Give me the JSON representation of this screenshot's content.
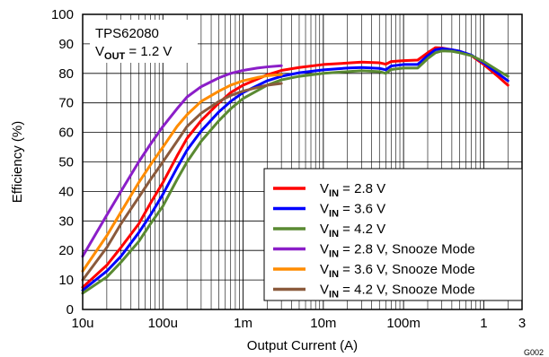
{
  "chart_data": {
    "type": "line",
    "xlabel": "Output Current (A)",
    "ylabel": "Efficiency (%)",
    "x_scale": "log",
    "xlim": [
      1e-05,
      3
    ],
    "ylim": [
      0,
      100
    ],
    "grid": true,
    "legend_position": "bottom-right",
    "x_ticks": [
      {
        "value": 1e-05,
        "label": "10u"
      },
      {
        "value": 0.0001,
        "label": "100u"
      },
      {
        "value": 0.001,
        "label": "1m"
      },
      {
        "value": 0.01,
        "label": "10m"
      },
      {
        "value": 0.1,
        "label": "100m"
      },
      {
        "value": 1,
        "label": "1"
      },
      {
        "value": 3,
        "label": "3"
      }
    ],
    "y_ticks": [
      {
        "value": 0,
        "label": "0"
      },
      {
        "value": 10,
        "label": "10"
      },
      {
        "value": 20,
        "label": "20"
      },
      {
        "value": 30,
        "label": "30"
      },
      {
        "value": 40,
        "label": "40"
      },
      {
        "value": 50,
        "label": "50"
      },
      {
        "value": 60,
        "label": "60"
      },
      {
        "value": 70,
        "label": "70"
      },
      {
        "value": 80,
        "label": "80"
      },
      {
        "value": 90,
        "label": "90"
      },
      {
        "value": 100,
        "label": "100"
      }
    ],
    "annotation": {
      "line1": "TPS62080",
      "line2_main": "V",
      "line2_sub": "OUT",
      "line2_rest": " = 1.2 V"
    },
    "footnote": "G002",
    "series": [
      {
        "name_main": "V",
        "name_sub": "IN",
        "name_rest": " = 2.8 V",
        "color": "#ff0000",
        "points": [
          [
            1e-05,
            7.5
          ],
          [
            2e-05,
            15
          ],
          [
            3e-05,
            21
          ],
          [
            5e-05,
            29
          ],
          [
            7e-05,
            36
          ],
          [
            0.0001,
            43
          ],
          [
            0.00015,
            52
          ],
          [
            0.0002,
            58
          ],
          [
            0.0003,
            64
          ],
          [
            0.0005,
            70
          ],
          [
            0.0007,
            73.5
          ],
          [
            0.001,
            76
          ],
          [
            0.002,
            79.5
          ],
          [
            0.003,
            81
          ],
          [
            0.005,
            82
          ],
          [
            0.01,
            83
          ],
          [
            0.02,
            83.5
          ],
          [
            0.03,
            83.8
          ],
          [
            0.05,
            83.6
          ],
          [
            0.06,
            83.1
          ],
          [
            0.07,
            84
          ],
          [
            0.1,
            84.3
          ],
          [
            0.15,
            84.5
          ],
          [
            0.2,
            87
          ],
          [
            0.25,
            88.7
          ],
          [
            0.3,
            88.6
          ],
          [
            0.4,
            88
          ],
          [
            0.5,
            87.5
          ],
          [
            0.7,
            86
          ],
          [
            1,
            83
          ],
          [
            1.5,
            79
          ],
          [
            2,
            76
          ]
        ]
      },
      {
        "name_main": "V",
        "name_sub": "IN",
        "name_rest": " = 3.6 V",
        "color": "#0000ff",
        "points": [
          [
            1e-05,
            6.5
          ],
          [
            2e-05,
            13
          ],
          [
            3e-05,
            18
          ],
          [
            5e-05,
            26
          ],
          [
            7e-05,
            32
          ],
          [
            0.0001,
            39
          ],
          [
            0.00015,
            48
          ],
          [
            0.0002,
            54
          ],
          [
            0.0003,
            60.5
          ],
          [
            0.0005,
            67
          ],
          [
            0.0007,
            70.5
          ],
          [
            0.001,
            73.5
          ],
          [
            0.002,
            77.5
          ],
          [
            0.003,
            79
          ],
          [
            0.005,
            80.2
          ],
          [
            0.01,
            81.2
          ],
          [
            0.02,
            81.8
          ],
          [
            0.03,
            82
          ],
          [
            0.05,
            81.7
          ],
          [
            0.06,
            81.2
          ],
          [
            0.07,
            82.5
          ],
          [
            0.1,
            83
          ],
          [
            0.15,
            83
          ],
          [
            0.2,
            86
          ],
          [
            0.25,
            88
          ],
          [
            0.3,
            88.4
          ],
          [
            0.4,
            88
          ],
          [
            0.5,
            87.5
          ],
          [
            0.7,
            86.2
          ],
          [
            1,
            83.5
          ],
          [
            1.5,
            80
          ],
          [
            2,
            77.5
          ]
        ]
      },
      {
        "name_main": "V",
        "name_sub": "IN",
        "name_rest": " = 4.2 V",
        "color": "#5a8a32",
        "points": [
          [
            1e-05,
            5.5
          ],
          [
            2e-05,
            11
          ],
          [
            3e-05,
            16
          ],
          [
            5e-05,
            23
          ],
          [
            7e-05,
            29
          ],
          [
            0.0001,
            35
          ],
          [
            0.00015,
            44
          ],
          [
            0.0002,
            50
          ],
          [
            0.0003,
            57
          ],
          [
            0.0005,
            64
          ],
          [
            0.0007,
            68
          ],
          [
            0.001,
            71.5
          ],
          [
            0.002,
            76
          ],
          [
            0.003,
            77.8
          ],
          [
            0.005,
            79
          ],
          [
            0.01,
            80
          ],
          [
            0.02,
            80.6
          ],
          [
            0.03,
            80.9
          ],
          [
            0.05,
            80.6
          ],
          [
            0.06,
            80
          ],
          [
            0.07,
            81.3
          ],
          [
            0.1,
            81.8
          ],
          [
            0.15,
            81.8
          ],
          [
            0.2,
            85
          ],
          [
            0.25,
            87
          ],
          [
            0.3,
            87.6
          ],
          [
            0.4,
            87.5
          ],
          [
            0.5,
            87
          ],
          [
            0.7,
            86
          ],
          [
            1,
            84
          ],
          [
            1.5,
            81
          ],
          [
            2,
            79
          ]
        ]
      },
      {
        "name_main": "V",
        "name_sub": "IN",
        "name_rest": " = 2.8 V, Snooze Mode",
        "color": "#8b1ec8",
        "points": [
          [
            1e-05,
            18
          ],
          [
            2e-05,
            32
          ],
          [
            3e-05,
            40
          ],
          [
            5e-05,
            50
          ],
          [
            7e-05,
            56
          ],
          [
            0.0001,
            62
          ],
          [
            0.00015,
            68
          ],
          [
            0.0002,
            72
          ],
          [
            0.0003,
            75.5
          ],
          [
            0.0005,
            78.5
          ],
          [
            0.0007,
            80
          ],
          [
            0.001,
            81
          ],
          [
            0.0015,
            81.8
          ],
          [
            0.002,
            82.2
          ],
          [
            0.003,
            82.6
          ]
        ]
      },
      {
        "name_main": "V",
        "name_sub": "IN",
        "name_rest": " = 3.6 V, Snooze Mode",
        "color": "#ff8c00",
        "points": [
          [
            1e-05,
            13
          ],
          [
            2e-05,
            25
          ],
          [
            3e-05,
            33
          ],
          [
            5e-05,
            43
          ],
          [
            7e-05,
            49
          ],
          [
            0.0001,
            55
          ],
          [
            0.00015,
            62
          ],
          [
            0.0002,
            66
          ],
          [
            0.0003,
            70.5
          ],
          [
            0.0005,
            74
          ],
          [
            0.0007,
            76
          ],
          [
            0.001,
            77.5
          ],
          [
            0.0015,
            78.6
          ],
          [
            0.002,
            79.2
          ],
          [
            0.003,
            79.6
          ]
        ]
      },
      {
        "name_main": "V",
        "name_sub": "IN",
        "name_rest": " = 4.2 V, Snooze Mode",
        "color": "#8b5a3c",
        "points": [
          [
            1e-05,
            10
          ],
          [
            2e-05,
            21
          ],
          [
            3e-05,
            29
          ],
          [
            5e-05,
            38
          ],
          [
            7e-05,
            44
          ],
          [
            0.0001,
            50
          ],
          [
            0.00015,
            57
          ],
          [
            0.0002,
            62
          ],
          [
            0.0003,
            66.5
          ],
          [
            0.0005,
            70.5
          ],
          [
            0.0007,
            72.5
          ],
          [
            0.001,
            74
          ],
          [
            0.0015,
            75.2
          ],
          [
            0.002,
            76
          ],
          [
            0.003,
            76.6
          ]
        ]
      }
    ]
  }
}
